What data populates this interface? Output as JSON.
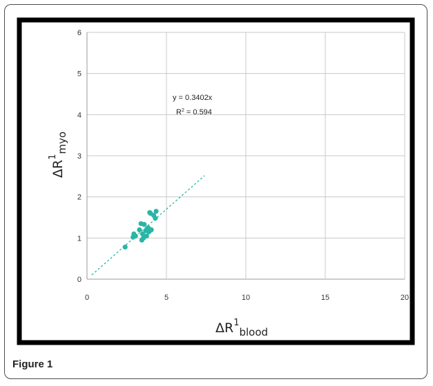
{
  "figure": {
    "label": "Figure 1"
  },
  "chart_data": {
    "type": "scatter",
    "title": "",
    "xlabel": {
      "base": "ΔR",
      "sup": "1",
      "sub": "blood"
    },
    "ylabel": {
      "base": "ΔR",
      "sup": "1",
      "sub": "myo"
    },
    "xlim": [
      0,
      20
    ],
    "ylim": [
      0,
      6
    ],
    "x_ticks": [
      0,
      5,
      10,
      15,
      20
    ],
    "y_ticks": [
      0,
      1,
      2,
      3,
      4,
      5,
      6
    ],
    "grid": true,
    "annotation": {
      "equation": "y = 0.3402x",
      "r2_base": "R",
      "r2_sup": "2",
      "r2_rest": " = 0.594"
    },
    "colors": {
      "points": "#2ab5a5",
      "trendline": "#2ab5a5",
      "grid": "#c8c8c8",
      "frame": "#000000"
    },
    "series": [
      {
        "values": [
          [
            2.4,
            0.78
          ],
          [
            2.9,
            1.02
          ],
          [
            2.95,
            1.1
          ],
          [
            3.05,
            1.05
          ],
          [
            3.3,
            1.2
          ],
          [
            3.4,
            1.35
          ],
          [
            3.45,
            0.95
          ],
          [
            3.55,
            1.0
          ],
          [
            3.6,
            1.33
          ],
          [
            3.7,
            1.18
          ],
          [
            3.75,
            1.05
          ],
          [
            3.85,
            1.25
          ],
          [
            3.9,
            1.15
          ],
          [
            3.95,
            1.62
          ],
          [
            4.05,
            1.2
          ],
          [
            4.2,
            1.55
          ],
          [
            4.3,
            1.48
          ],
          [
            4.35,
            1.65
          ],
          [
            4.0,
            1.6
          ],
          [
            3.5,
            1.1
          ]
        ]
      }
    ],
    "trendline": {
      "slope": 0.3402,
      "x_start": 0.3,
      "x_end": 7.4
    }
  }
}
